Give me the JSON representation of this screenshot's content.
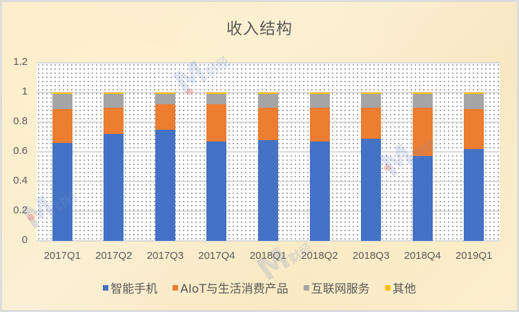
{
  "chart_data": {
    "type": "bar",
    "stacked": true,
    "title": "收入结构",
    "xlabel": "",
    "ylabel": "",
    "ylim": [
      0,
      1.2
    ],
    "yticks": [
      "0",
      "0.2",
      "0.4",
      "0.6",
      "0.8",
      "1",
      "1.2"
    ],
    "grid": true,
    "legend_position": "bottom",
    "categories": [
      "2017Q1",
      "2017Q2",
      "2017Q3",
      "2017Q4",
      "2018Q1",
      "2018Q2",
      "2018Q3",
      "2018Q4",
      "2019Q1"
    ],
    "series": [
      {
        "name": "智能手机",
        "color": "#4472C4",
        "values": [
          0.66,
          0.72,
          0.75,
          0.67,
          0.68,
          0.67,
          0.69,
          0.57,
          0.62
        ]
      },
      {
        "name": "AIoT与生活消费产品",
        "color": "#ED7D31",
        "values": [
          0.23,
          0.18,
          0.17,
          0.25,
          0.22,
          0.23,
          0.21,
          0.33,
          0.27
        ]
      },
      {
        "name": "互联网服务",
        "color": "#A5A5A5",
        "values": [
          0.1,
          0.09,
          0.07,
          0.07,
          0.09,
          0.09,
          0.09,
          0.09,
          0.1
        ]
      },
      {
        "name": "其他",
        "color": "#FFC000",
        "values": [
          0.01,
          0.01,
          0.01,
          0.01,
          0.01,
          0.01,
          0.01,
          0.01,
          0.01
        ]
      }
    ]
  },
  "watermark": {
    "text": "财经"
  }
}
